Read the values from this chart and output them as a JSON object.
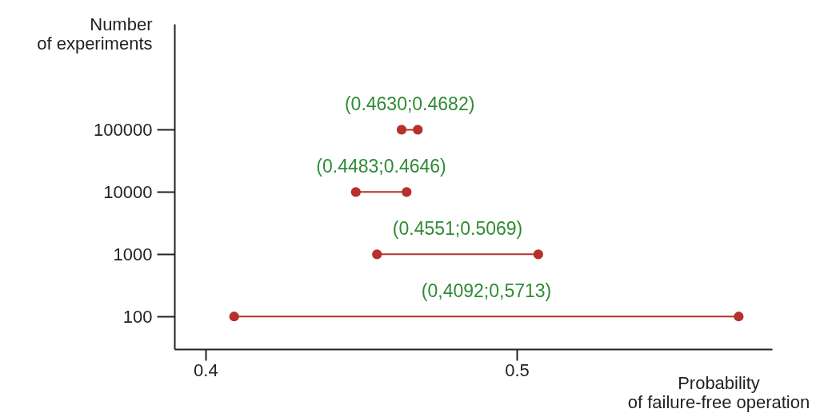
{
  "chart_data": {
    "type": "line",
    "xlabel": "Probability of failure-free operation",
    "ylabel": "Number of experiments",
    "log": "y",
    "xlim": [
      0.39,
      0.582
    ],
    "xticks": [
      0.4,
      0.5
    ],
    "ylim": [
      30,
      5000000
    ],
    "yticks": [
      100,
      1000,
      10000,
      100000
    ],
    "marker": "circle",
    "grid": false,
    "legend": false,
    "series": [
      {
        "color": "#b5312a",
        "x": [
          0.4092,
          0.5713
        ],
        "values": [
          100,
          100
        ]
      },
      {
        "color": "#b5312a",
        "x": [
          0.4551,
          0.5069
        ],
        "values": [
          1000,
          1000
        ]
      },
      {
        "color": "#b5312a",
        "x": [
          0.4483,
          0.4646
        ],
        "values": [
          10000,
          10000
        ]
      },
      {
        "color": "#b5312a",
        "x": [
          0.463,
          0.4682
        ],
        "values": [
          100000,
          100000
        ]
      }
    ],
    "annotations": [
      {
        "text": "(0,4092;0,5713)",
        "x": 0.49025,
        "y": 100
      },
      {
        "text": "(0.4551;0.5069)",
        "x": 0.481,
        "y": 1000
      },
      {
        "text": "(0.4483;0.4646)",
        "x": 0.45645,
        "y": 10000
      },
      {
        "text": "(0.4630;0.4682)",
        "x": 0.4656,
        "y": 100000
      }
    ]
  }
}
